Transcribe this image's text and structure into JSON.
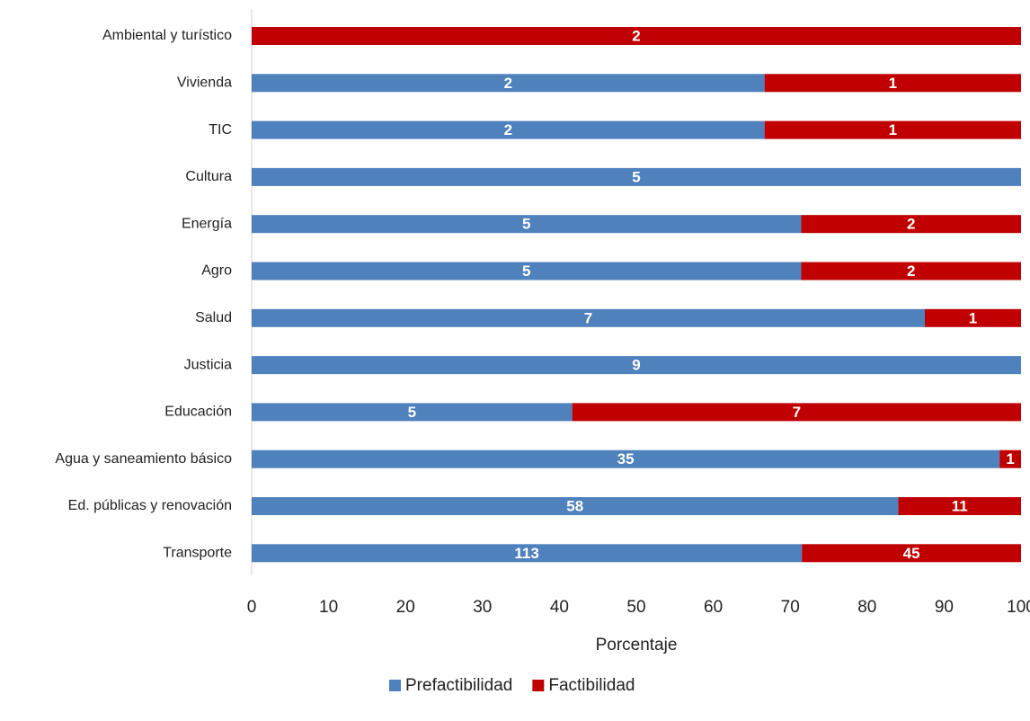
{
  "chart_data": {
    "type": "bar",
    "orientation": "horizontal",
    "stacked": "percent",
    "xlabel": "Porcentaje",
    "categories": [
      "Ambiental y turístico",
      "Vivienda",
      "TIC",
      "Cultura",
      "Energía",
      "Agro",
      "Salud",
      "Justicia",
      "Educación",
      "Agua y saneamiento básico",
      "Ed. públicas y renovación",
      "Transporte"
    ],
    "series": [
      {
        "name": "Prefactibilidad",
        "color": "#4f81bd",
        "values": [
          null,
          2,
          2,
          5,
          5,
          5,
          7,
          9,
          5,
          35,
          58,
          113
        ]
      },
      {
        "name": "Factibilidad",
        "color": "#c00000",
        "values": [
          2,
          1,
          1,
          null,
          2,
          2,
          1,
          null,
          7,
          1,
          11,
          45
        ]
      }
    ],
    "xlim": [
      0,
      100
    ],
    "xticks": [
      0,
      10,
      20,
      30,
      40,
      50,
      60,
      70,
      80,
      90,
      100
    ],
    "grid": false,
    "legend": "bottom"
  }
}
